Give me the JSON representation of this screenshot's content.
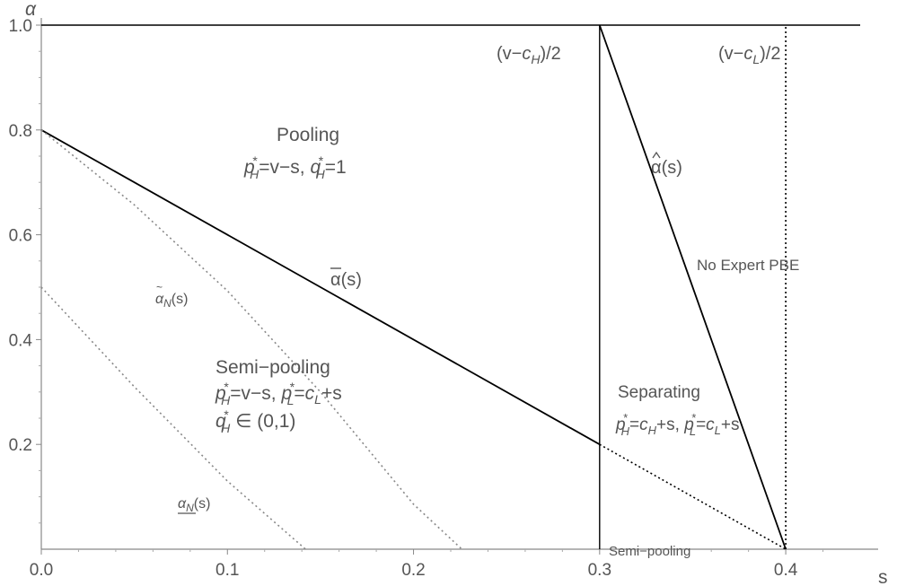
{
  "chart_data": {
    "type": "line",
    "xlabel": "s",
    "ylabel": "α",
    "xlim": [
      0,
      0.44
    ],
    "ylim": [
      0,
      1.0
    ],
    "x_ticks": [
      "0.0",
      "0.1",
      "0.2",
      "0.3",
      "0.4"
    ],
    "y_ticks": [
      "0.2",
      "0.4",
      "0.6",
      "0.8",
      "1.0"
    ],
    "grid": false,
    "series": [
      {
        "name": "ᾱ(s)",
        "style": "solid",
        "color": "#000000",
        "points": [
          [
            0,
            0.8
          ],
          [
            0.3,
            0.2
          ]
        ]
      },
      {
        "name": "",
        "style": "dotted",
        "color": "#000000",
        "points": [
          [
            0.3,
            0.2
          ],
          [
            0.4,
            0.0
          ]
        ]
      },
      {
        "name": "α̂(s)",
        "style": "solid",
        "color": "#000000",
        "points": [
          [
            0.3,
            1.0
          ],
          [
            0.4,
            0.0
          ]
        ]
      },
      {
        "name": "α̃N(s)",
        "style": "dotted",
        "color": "#888888",
        "points": [
          [
            0,
            0.8
          ],
          [
            0.05,
            0.657
          ],
          [
            0.1,
            0.493
          ],
          [
            0.15,
            0.3
          ],
          [
            0.2,
            0.086
          ],
          [
            0.226,
            0.0
          ]
        ]
      },
      {
        "name": "αN(s)",
        "style": "dotted",
        "color": "#888888",
        "points": [
          [
            0,
            0.5
          ],
          [
            0.05,
            0.31
          ],
          [
            0.1,
            0.13
          ],
          [
            0.142,
            0.0
          ]
        ]
      },
      {
        "name": "",
        "style": "solid",
        "color": "#000000",
        "points": [
          [
            0,
            1.0
          ],
          [
            0.44,
            1.0
          ]
        ]
      },
      {
        "name": "",
        "style": "solid",
        "color": "#000000",
        "points": [
          [
            0.3,
            0.0
          ],
          [
            0.3,
            1.0
          ]
        ]
      },
      {
        "name": "",
        "style": "dotted",
        "color": "#000000",
        "points": [
          [
            0.4,
            0.0
          ],
          [
            0.4,
            1.0
          ]
        ]
      }
    ],
    "vertical_labels": {
      "cH": {
        "text_pre": "(v−",
        "var": "c",
        "sub": "H",
        "text_post": ")/2"
      },
      "cL": {
        "text_pre": "(v−",
        "var": "c",
        "sub": "L",
        "text_post": ")/2"
      }
    },
    "annotations": {
      "pooling": {
        "title": "Pooling",
        "eq": {
          "pH": "=v−s, ",
          "qH": "=1"
        }
      },
      "semi_pooling": {
        "title": "Semi−pooling",
        "eq1": {
          "pH": "=v−s, ",
          "pL": "=",
          "pL_rhs": "+s"
        },
        "eq2": " ∈ (0,1)"
      },
      "separating": {
        "title": "Separating",
        "eq": {
          "pH": "=",
          "pH_rhs": "+s, ",
          "pL": "=",
          "pL_rhs": "+s"
        }
      },
      "no_expert": "No Expert PBE",
      "semi_pooling_small": "Semi−pooling",
      "alpha_bar": "(s)",
      "alpha_hat": "(s)",
      "alpha_tilde": "(s)",
      "alpha_under": "(s)"
    }
  }
}
